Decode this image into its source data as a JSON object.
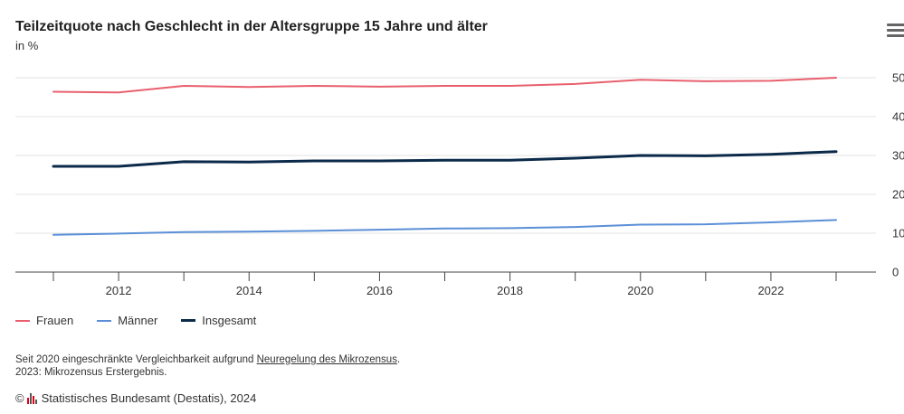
{
  "header": {
    "title": "Teilzeitquote nach Geschlecht in der Altersgruppe 15 Jahre und älter",
    "subtitle": "in %"
  },
  "menu_icon": "hamburger-menu-icon",
  "chart_data": {
    "type": "line",
    "x": [
      2011,
      2012,
      2013,
      2014,
      2015,
      2016,
      2017,
      2018,
      2019,
      2020,
      2021,
      2022,
      2023
    ],
    "x_tick_labels": [
      "2012",
      "2014",
      "2016",
      "2018",
      "2020",
      "2022"
    ],
    "y_tick_labels": [
      "0",
      "10",
      "20",
      "30",
      "40",
      "50"
    ],
    "ylim": [
      0,
      50
    ],
    "grid": true,
    "legend_position": "bottom-left",
    "series": [
      {
        "name": "Frauen",
        "color": "#e8606e",
        "values": [
          46.4,
          46.2,
          47.9,
          47.6,
          47.9,
          47.7,
          47.9,
          47.9,
          48.4,
          49.5,
          49.1,
          49.2,
          50.0
        ]
      },
      {
        "name": "Männer",
        "color": "#5b8fd7",
        "values": [
          9.6,
          9.9,
          10.3,
          10.4,
          10.6,
          10.9,
          11.2,
          11.3,
          11.6,
          12.2,
          12.3,
          12.8,
          13.4
        ]
      },
      {
        "name": "Insgesamt",
        "color": "#0b2a4a",
        "values": [
          27.2,
          27.2,
          28.4,
          28.3,
          28.6,
          28.6,
          28.8,
          28.8,
          29.3,
          30.0,
          29.9,
          30.3,
          31.0
        ]
      }
    ]
  },
  "notes": {
    "line1_prefix": "Seit 2020 eingeschränkte Vergleichbarkeit aufgrund ",
    "line1_link": "Neuregelung des Mikrozensus",
    "line1_suffix": ".",
    "line2": "2023: Mikrozensus Erstergebnis."
  },
  "source": {
    "copyright": "©",
    "text": "Statistisches Bundesamt (Destatis), 2024"
  }
}
